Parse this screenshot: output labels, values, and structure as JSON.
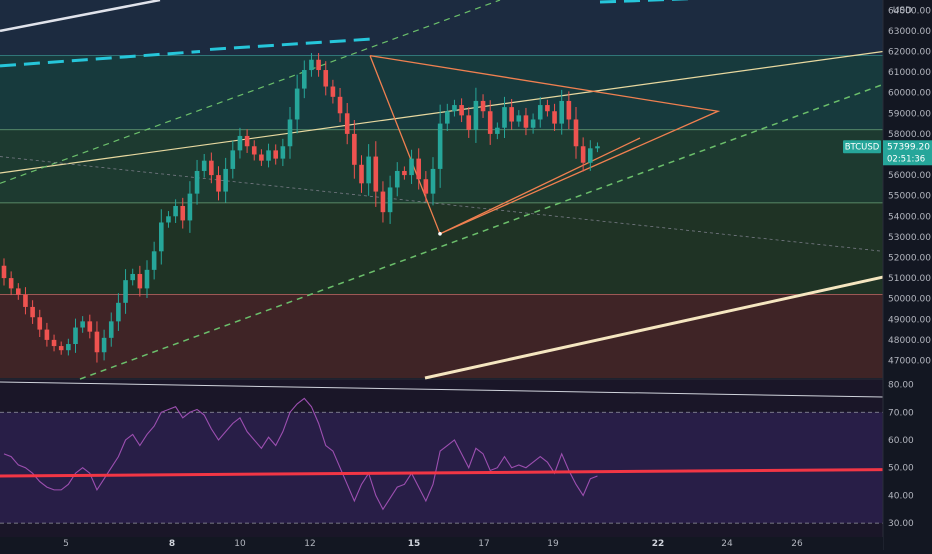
{
  "chart_data": {
    "type": "candlestick",
    "symbol": "BTCUSD",
    "currency": "USD",
    "last_price": "57399.20",
    "countdown": "02:51:36",
    "y_ticks": [
      "64000.00",
      "63000.00",
      "62000.00",
      "61000.00",
      "60000.00",
      "59000.00",
      "58000.00",
      "57000.00",
      "56000.00",
      "55000.00",
      "54000.00",
      "53000.00",
      "52000.00",
      "51000.00",
      "50000.00",
      "49000.00",
      "48000.00",
      "47000.00"
    ],
    "ylim": [
      46150,
      64500
    ],
    "x_ticks": [
      {
        "label": "5",
        "bold": false
      },
      {
        "label": "8",
        "bold": true
      },
      {
        "label": "10",
        "bold": false
      },
      {
        "label": "12",
        "bold": false
      },
      {
        "label": "15",
        "bold": true
      },
      {
        "label": "17",
        "bold": false
      },
      {
        "label": "19",
        "bold": false
      },
      {
        "label": "22",
        "bold": true
      },
      {
        "label": "24",
        "bold": false
      },
      {
        "label": "26",
        "bold": false
      }
    ],
    "zones": [
      {
        "from": 58200,
        "to": 61800,
        "color": "#173a3d"
      },
      {
        "from": 54650,
        "to": 58200,
        "color": "#1d3a30"
      },
      {
        "from": 50200,
        "to": 54650,
        "color": "#1f3325"
      },
      {
        "from": 46150,
        "to": 50200,
        "color": "#3f2426"
      }
    ],
    "candles": [
      [
        51600,
        51000
      ],
      [
        51000,
        50500
      ],
      [
        50500,
        50200
      ],
      [
        50200,
        49600
      ],
      [
        49600,
        49100
      ],
      [
        49100,
        48500
      ],
      [
        48500,
        48000
      ],
      [
        48000,
        47700
      ],
      [
        47700,
        47500
      ],
      [
        47500,
        47800
      ],
      [
        47800,
        48600
      ],
      [
        48600,
        48900
      ],
      [
        48900,
        48400
      ],
      [
        48400,
        47400
      ],
      [
        47400,
        48100
      ],
      [
        48100,
        48900
      ],
      [
        48900,
        49800
      ],
      [
        49800,
        50900
      ],
      [
        50900,
        51200
      ],
      [
        51200,
        50500
      ],
      [
        50500,
        51400
      ],
      [
        51400,
        52300
      ],
      [
        52300,
        53700
      ],
      [
        53700,
        54000
      ],
      [
        54000,
        54500
      ],
      [
        54500,
        53800
      ],
      [
        53800,
        55100
      ],
      [
        55100,
        56200
      ],
      [
        56200,
        56700
      ],
      [
        56700,
        56000
      ],
      [
        56000,
        55200
      ],
      [
        55200,
        56300
      ],
      [
        56300,
        57200
      ],
      [
        57200,
        57900
      ],
      [
        57900,
        57400
      ],
      [
        57400,
        57000
      ],
      [
        57000,
        56700
      ],
      [
        56700,
        57200
      ],
      [
        57200,
        56800
      ],
      [
        56800,
        57400
      ],
      [
        57400,
        58700
      ],
      [
        58700,
        60200
      ],
      [
        60200,
        61100
      ],
      [
        61100,
        61600
      ],
      [
        61600,
        61100
      ],
      [
        61100,
        60300
      ],
      [
        60300,
        59800
      ],
      [
        59800,
        59000
      ],
      [
        59000,
        58000
      ],
      [
        58000,
        56500
      ],
      [
        56500,
        55600
      ],
      [
        55600,
        56900
      ],
      [
        56900,
        55200
      ],
      [
        55200,
        54200
      ],
      [
        54200,
        55400
      ],
      [
        55400,
        56200
      ],
      [
        56200,
        56000
      ],
      [
        56000,
        56800
      ],
      [
        56800,
        55800
      ],
      [
        55800,
        55100
      ],
      [
        55100,
        56300
      ],
      [
        56300,
        58500
      ],
      [
        58500,
        59100
      ],
      [
        59100,
        59400
      ],
      [
        59400,
        58900
      ],
      [
        58900,
        58200
      ],
      [
        58200,
        59600
      ],
      [
        59600,
        59100
      ],
      [
        59100,
        58000
      ],
      [
        58000,
        58300
      ],
      [
        58300,
        59300
      ],
      [
        59300,
        58600
      ],
      [
        58600,
        58900
      ],
      [
        58900,
        58300
      ],
      [
        58300,
        58700
      ],
      [
        58700,
        59400
      ],
      [
        59400,
        59100
      ],
      [
        59100,
        58500
      ],
      [
        58500,
        59600
      ],
      [
        59600,
        58700
      ],
      [
        58700,
        57400
      ],
      [
        57400,
        56600
      ],
      [
        56600,
        57300
      ],
      [
        57300,
        57400
      ]
    ],
    "rsi": {
      "ylim": [
        25,
        82
      ],
      "ticks": [
        "80.00",
        "70.00",
        "60.00",
        "50.00",
        "40.00",
        "30.00"
      ],
      "overbought": 70,
      "oversold": 30,
      "values": [
        55,
        54,
        51,
        50,
        48,
        45,
        43,
        42,
        42,
        44,
        48,
        50,
        48,
        42,
        46,
        50,
        54,
        60,
        62,
        58,
        62,
        65,
        70,
        71,
        72,
        68,
        70,
        71,
        69,
        64,
        60,
        63,
        66,
        68,
        63,
        60,
        57,
        61,
        58,
        63,
        70,
        73,
        75,
        72,
        66,
        58,
        56,
        50,
        44,
        38,
        44,
        48,
        40,
        35,
        39,
        43,
        44,
        48,
        43,
        38,
        44,
        56,
        58,
        60,
        55,
        50,
        57,
        55,
        49,
        50,
        54,
        50,
        51,
        50,
        52,
        54,
        52,
        48,
        55,
        49,
        44,
        40,
        46,
        47
      ]
    }
  }
}
